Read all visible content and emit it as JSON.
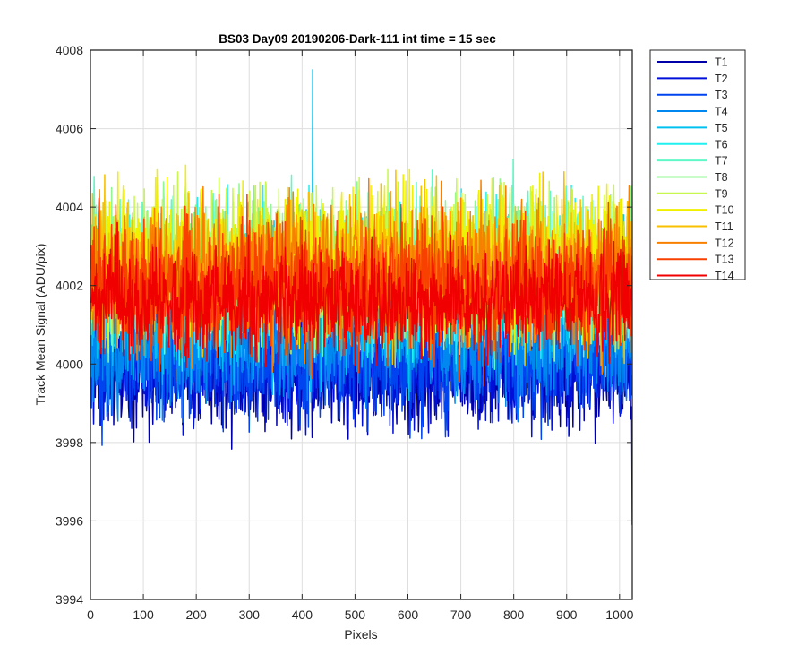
{
  "chart_data": {
    "type": "line",
    "title": "BS03 Day09 20190206-Dark-111 int time = 15 sec",
    "xlabel": "Pixels",
    "ylabel": "Track Mean Signal (ADU/pix)",
    "xlim": [
      0,
      1024
    ],
    "ylim": [
      3994,
      4008
    ],
    "x_ticks": [
      0,
      100,
      200,
      300,
      400,
      500,
      600,
      700,
      800,
      900,
      1000
    ],
    "y_ticks": [
      3994,
      3996,
      3998,
      4000,
      4002,
      4004,
      4006,
      4008
    ],
    "grid": true,
    "legend_position": "outside-top-right",
    "x": {
      "start": 1,
      "end": 1024,
      "step": 1
    },
    "series": [
      {
        "name": "T1",
        "color": "#0000a8",
        "mean": 3999.9,
        "noise": 0.75,
        "spike_max": 3995.9
      },
      {
        "name": "T2",
        "color": "#0010d8",
        "mean": 4000.0,
        "noise": 0.75
      },
      {
        "name": "T3",
        "color": "#0044f0",
        "mean": 4000.1,
        "noise": 0.75
      },
      {
        "name": "T4",
        "color": "#0088f0",
        "mean": 4000.6,
        "noise": 0.8
      },
      {
        "name": "T5",
        "color": "#00c0f0",
        "mean": 4001.6,
        "noise": 0.9,
        "spike_max": 4007.5
      },
      {
        "name": "T6",
        "color": "#20f0f0",
        "mean": 4002.2,
        "noise": 0.9
      },
      {
        "name": "T7",
        "color": "#60f8c8",
        "mean": 4002.4,
        "noise": 0.9
      },
      {
        "name": "T8",
        "color": "#90f890",
        "mean": 4002.5,
        "noise": 0.9
      },
      {
        "name": "T9",
        "color": "#c8f850",
        "mean": 4002.6,
        "noise": 0.9
      },
      {
        "name": "T10",
        "color": "#f0f000",
        "mean": 4002.6,
        "noise": 0.9
      },
      {
        "name": "T11",
        "color": "#f8c000",
        "mean": 4002.4,
        "noise": 0.9
      },
      {
        "name": "T12",
        "color": "#f88000",
        "mean": 4002.2,
        "noise": 0.9
      },
      {
        "name": "T13",
        "color": "#f84000",
        "mean": 4002.0,
        "noise": 0.85
      },
      {
        "name": "T14",
        "color": "#f00000",
        "mean": 4001.6,
        "noise": 0.7
      }
    ]
  }
}
